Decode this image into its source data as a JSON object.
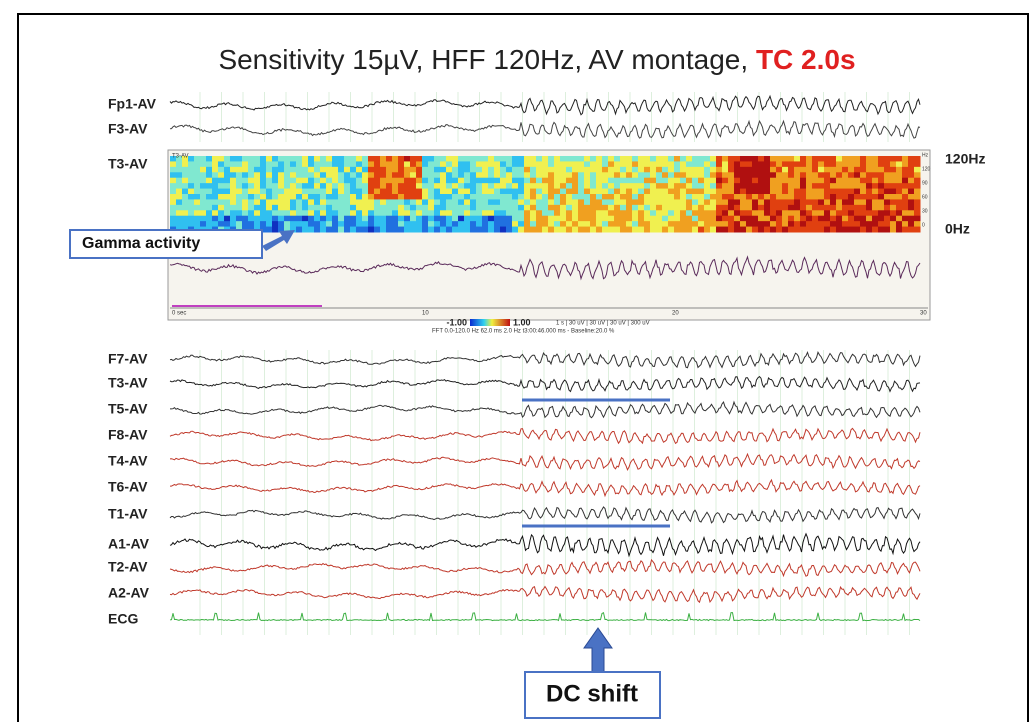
{
  "title": {
    "text": "Sensitivity 15µV, HFF 120Hz, AV montage, ",
    "highlight": "TC 2.0s"
  },
  "top_channels": [
    {
      "name": "Fp1-AV",
      "color": "#222222"
    },
    {
      "name": "F3-AV",
      "color": "#444444"
    }
  ],
  "spectrogram": {
    "channel": "T3-AV",
    "freq_high": "120Hz",
    "freq_low": "0Hz",
    "inner_label": "T3-AV",
    "hz_ticks": [
      "Hz",
      "120",
      "90",
      "60",
      "30",
      "0"
    ],
    "time_labels": [
      "0 sec",
      "10",
      "20",
      "30"
    ],
    "scale_min": "-1.00",
    "scale_max": "1.00",
    "ruler": "1 s | 30 uV    | 30 uV    | 30 uV    | 300 uV",
    "info": "FFT  0.0-120.0 Hz   62.0 ms   2.0 Hz   t3:00:46.000 ms  -  Baseline:20.0 %"
  },
  "annotations": {
    "gamma": "Gamma activity",
    "dc": "DC shift"
  },
  "bottom_channels": [
    {
      "name": "F7-AV",
      "color": "#333333"
    },
    {
      "name": "T3-AV",
      "color": "#222222"
    },
    {
      "name": "T5-AV",
      "color": "#333333"
    },
    {
      "name": "F8-AV",
      "color": "#c0392b"
    },
    {
      "name": "T4-AV",
      "color": "#c0392b"
    },
    {
      "name": "T6-AV",
      "color": "#c0392b"
    },
    {
      "name": "T1-AV",
      "color": "#333333"
    },
    {
      "name": "A1-AV",
      "color": "#111111"
    },
    {
      "name": "T2-AV",
      "color": "#c0392b"
    },
    {
      "name": "A2-AV",
      "color": "#c0392b"
    },
    {
      "name": "ECG",
      "color": "#3cb043"
    }
  ]
}
